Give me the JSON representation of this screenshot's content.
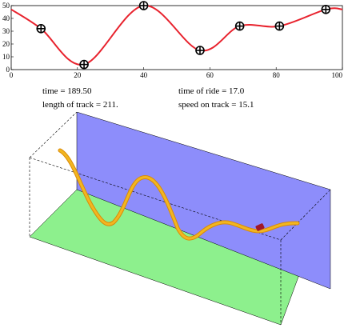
{
  "readouts": {
    "time_label": "time",
    "time_value": "189.50",
    "time_of_ride_label": "time of ride",
    "time_of_ride_value": "17.0",
    "length_label": "length of track",
    "length_value": "211.",
    "speed_label": "speed on track",
    "speed_value": "15.1"
  },
  "chart_data": {
    "type": "line",
    "xlim": [
      0,
      100
    ],
    "ylim": [
      0,
      50
    ],
    "x_ticks": [
      0,
      20,
      40,
      60,
      80,
      100
    ],
    "y_ticks": [
      0,
      10,
      20,
      30,
      40,
      50
    ],
    "control_points": [
      {
        "x": 9,
        "y": 32
      },
      {
        "x": 22,
        "y": 4
      },
      {
        "x": 40,
        "y": 50
      },
      {
        "x": 57,
        "y": 15
      },
      {
        "x": 69,
        "y": 34
      },
      {
        "x": 81,
        "y": 34
      },
      {
        "x": 95,
        "y": 47
      }
    ],
    "curve": [
      [
        0,
        47
      ],
      [
        9,
        32
      ],
      [
        22,
        4
      ],
      [
        40,
        50
      ],
      [
        57,
        15
      ],
      [
        69,
        34
      ],
      [
        81,
        34
      ],
      [
        95,
        47
      ],
      [
        100,
        47
      ]
    ],
    "line_color": "#e8232e",
    "grid": false
  },
  "scene": {
    "back_wall_color": "#8d8dfb",
    "floor_color": "#8df08d",
    "track_color": "#f2b620",
    "track_edge_color": "#d98a08",
    "car_color": "#a01828"
  }
}
